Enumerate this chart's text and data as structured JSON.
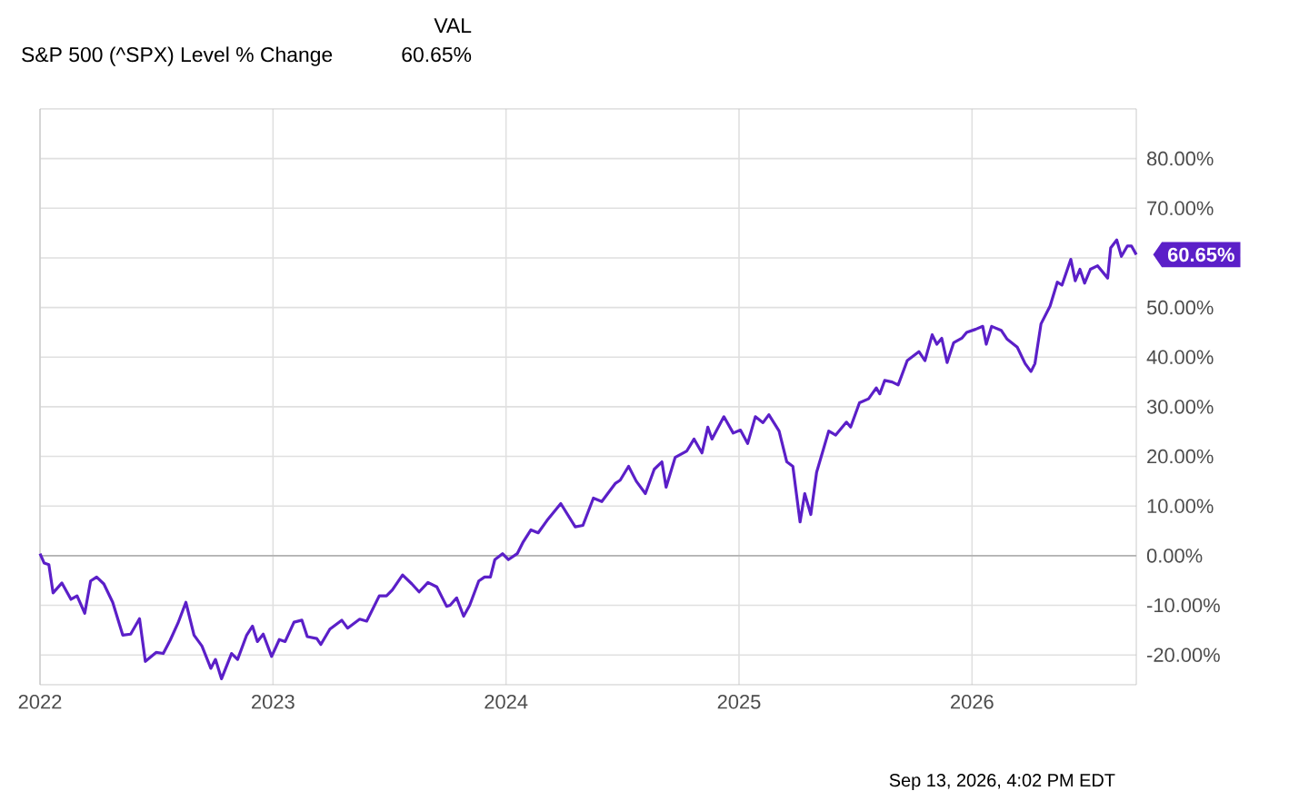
{
  "chart_data": {
    "type": "line",
    "title": "S&P 500 (^SPX) Level % Change",
    "annotations": [
      "VAL",
      "60.65%",
      "Sep 13, 2026, 4:02 PM EDT",
      {
        "text": "60.65%",
        "x": 2026.705,
        "y": 60.65
      }
    ],
    "xlim": [
      2022,
      2026.705
    ],
    "xticks": [
      2022,
      2023,
      2024,
      2025,
      2026
    ],
    "ylim": [
      -26,
      90
    ],
    "yticks": [
      {
        "value": -20,
        "label": "-20.00%"
      },
      {
        "value": -10,
        "label": "-10.00%"
      },
      {
        "value": 0,
        "label": "0.00%"
      },
      {
        "value": 10,
        "label": "10.00%"
      },
      {
        "value": 20,
        "label": "20.00%"
      },
      {
        "value": 30,
        "label": "30.00%"
      },
      {
        "value": 40,
        "label": "40.00%"
      },
      {
        "value": 50,
        "label": "50.00%"
      },
      {
        "value": 60,
        "label": null
      },
      {
        "value": 70,
        "label": "70.00%"
      },
      {
        "value": 80,
        "label": "80.00%"
      }
    ],
    "grid": true,
    "marker": "none",
    "line_style": "solid",
    "series": [
      {
        "color": "#5b1fc8",
        "x": [
          2022.0,
          2022.018,
          2022.038,
          2022.056,
          2022.094,
          2022.133,
          2022.159,
          2022.192,
          2022.217,
          2022.243,
          2022.274,
          2022.312,
          2022.355,
          2022.389,
          2022.427,
          2022.452,
          2022.498,
          2022.529,
          2022.559,
          2022.592,
          2022.626,
          2022.661,
          2022.695,
          2022.733,
          2022.753,
          2022.779,
          2022.822,
          2022.848,
          2022.887,
          2022.912,
          2022.933,
          2022.958,
          2022.994,
          2023.027,
          2023.052,
          2023.09,
          2023.124,
          2023.147,
          2023.188,
          2023.205,
          2023.244,
          2023.295,
          2023.32,
          2023.372,
          2023.402,
          2023.456,
          2023.487,
          2023.512,
          2023.556,
          2023.596,
          2023.627,
          2023.665,
          2023.703,
          2023.745,
          2023.76,
          2023.788,
          2023.818,
          2023.844,
          2023.883,
          2023.908,
          2023.933,
          2023.952,
          2023.985,
          2024.01,
          2024.048,
          2024.074,
          2024.107,
          2024.138,
          2024.176,
          2024.235,
          2024.297,
          2024.33,
          2024.375,
          2024.411,
          2024.47,
          2024.49,
          2024.526,
          2024.559,
          2024.598,
          2024.636,
          2024.669,
          2024.687,
          2024.726,
          2024.776,
          2024.807,
          2024.841,
          2024.866,
          2024.884,
          2024.935,
          2024.975,
          2025.006,
          2025.037,
          2025.07,
          2025.103,
          2025.128,
          2025.172,
          2025.205,
          2025.231,
          2025.262,
          2025.282,
          2025.308,
          2025.333,
          2025.385,
          2025.415,
          2025.461,
          2025.479,
          2025.517,
          2025.556,
          2025.589,
          2025.604,
          2025.625,
          2025.657,
          2025.683,
          2025.722,
          2025.772,
          2025.798,
          2025.829,
          2025.849,
          2025.87,
          2025.893,
          2025.921,
          2025.956,
          2025.977,
          2026.015,
          2026.046,
          2026.061,
          2026.084,
          2026.125,
          2026.151,
          2026.194,
          2026.228,
          2026.253,
          2026.27,
          2026.296,
          2026.335,
          2026.366,
          2026.386,
          2026.424,
          2026.443,
          2026.463,
          2026.483,
          2026.508,
          2026.539,
          2026.565,
          2026.582,
          2026.595,
          2026.621,
          2026.641,
          2026.667,
          2026.684,
          2026.705
        ],
        "values": [
          0.4,
          -1.5,
          -1.8,
          -7.5,
          -5.5,
          -8.8,
          -8.1,
          -11.6,
          -5.1,
          -4.3,
          -5.7,
          -9.4,
          -16,
          -15.8,
          -12.7,
          -21.3,
          -19.5,
          -19.7,
          -17,
          -13.6,
          -9.4,
          -16,
          -18.2,
          -22.7,
          -20.9,
          -24.8,
          -19.7,
          -20.9,
          -16,
          -14.2,
          -17.3,
          -15.8,
          -20.3,
          -16.9,
          -17.3,
          -13.4,
          -13,
          -16.3,
          -16.7,
          -17.9,
          -14.8,
          -13,
          -14.6,
          -12.8,
          -13.2,
          -8.1,
          -8.1,
          -6.9,
          -3.9,
          -5.7,
          -7.3,
          -5.4,
          -6.3,
          -10.2,
          -10,
          -8.5,
          -12.2,
          -10,
          -5.1,
          -4.3,
          -4.3,
          -0.8,
          0.4,
          -0.8,
          0.4,
          2.8,
          5.2,
          4.6,
          7.1,
          10.5,
          5.8,
          6.1,
          11.6,
          10.9,
          14.6,
          15.2,
          18,
          15,
          12.5,
          17.4,
          18.9,
          13.8,
          19.8,
          21.1,
          23.5,
          20.7,
          25.9,
          23.5,
          28,
          24.7,
          25.3,
          22.6,
          28,
          26.8,
          28.4,
          25.1,
          18.9,
          18,
          6.8,
          12.5,
          8.3,
          16.8,
          25.1,
          24.3,
          26.9,
          25.9,
          30.8,
          31.6,
          33.8,
          32.6,
          35.3,
          35,
          34.4,
          39.3,
          41.1,
          39.3,
          44.5,
          42.6,
          43.8,
          38.9,
          42.9,
          43.8,
          45,
          45.6,
          46.2,
          42.6,
          46.2,
          45.4,
          43.6,
          42,
          38.7,
          37.1,
          38.7,
          46.7,
          50.3,
          55.1,
          54.5,
          59.7,
          55.4,
          57.7,
          54.9,
          57.7,
          58.4,
          56.9,
          55.9,
          62,
          63.6,
          60.3,
          62.4,
          62.4,
          60.65
        ]
      }
    ]
  }
}
